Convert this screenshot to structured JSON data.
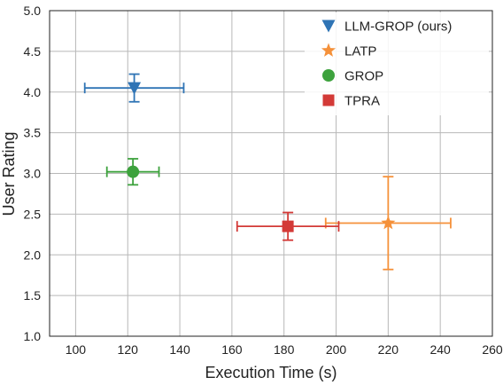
{
  "chart_data": {
    "type": "scatter",
    "title": "",
    "xlabel": "Execution Time (s)",
    "ylabel": "User Rating",
    "xlim": [
      90,
      260
    ],
    "ylim": [
      1.0,
      5.0
    ],
    "xticks": [
      100,
      120,
      140,
      160,
      180,
      200,
      220,
      240,
      260
    ],
    "xtick_labels": [
      "100",
      "120",
      "140",
      "160",
      "180",
      "200",
      "220",
      "240",
      "260"
    ],
    "yticks": [
      1.0,
      1.5,
      2.0,
      2.5,
      3.0,
      3.5,
      4.0,
      4.5,
      5.0
    ],
    "ytick_labels": [
      "1.0",
      "1.5",
      "2.0",
      "2.5",
      "3.0",
      "3.5",
      "4.0",
      "4.5",
      "5.0"
    ],
    "grid": true,
    "legend_position": "top-right",
    "series": [
      {
        "name": "LLM-GROP (ours)",
        "marker": "triangle-down",
        "color": "#2f74b5",
        "x": 122.5,
        "y": 4.05,
        "x_err": [
          19.0,
          19.0
        ],
        "y_err": [
          0.17,
          0.17
        ]
      },
      {
        "name": "LATP",
        "marker": "star",
        "color": "#f5913a",
        "x": 220.0,
        "y": 2.39,
        "x_err": [
          24.0,
          24.0
        ],
        "y_err": [
          0.57,
          0.57
        ]
      },
      {
        "name": "GROP",
        "marker": "circle",
        "color": "#3da23d",
        "x": 122.0,
        "y": 3.02,
        "x_err": [
          10.0,
          10.0
        ],
        "y_err": [
          0.16,
          0.16
        ]
      },
      {
        "name": "TPRA",
        "marker": "square",
        "color": "#d33a37",
        "x": 181.5,
        "y": 2.35,
        "x_err": [
          19.5,
          19.5
        ],
        "y_err": [
          0.17,
          0.17
        ]
      }
    ]
  }
}
